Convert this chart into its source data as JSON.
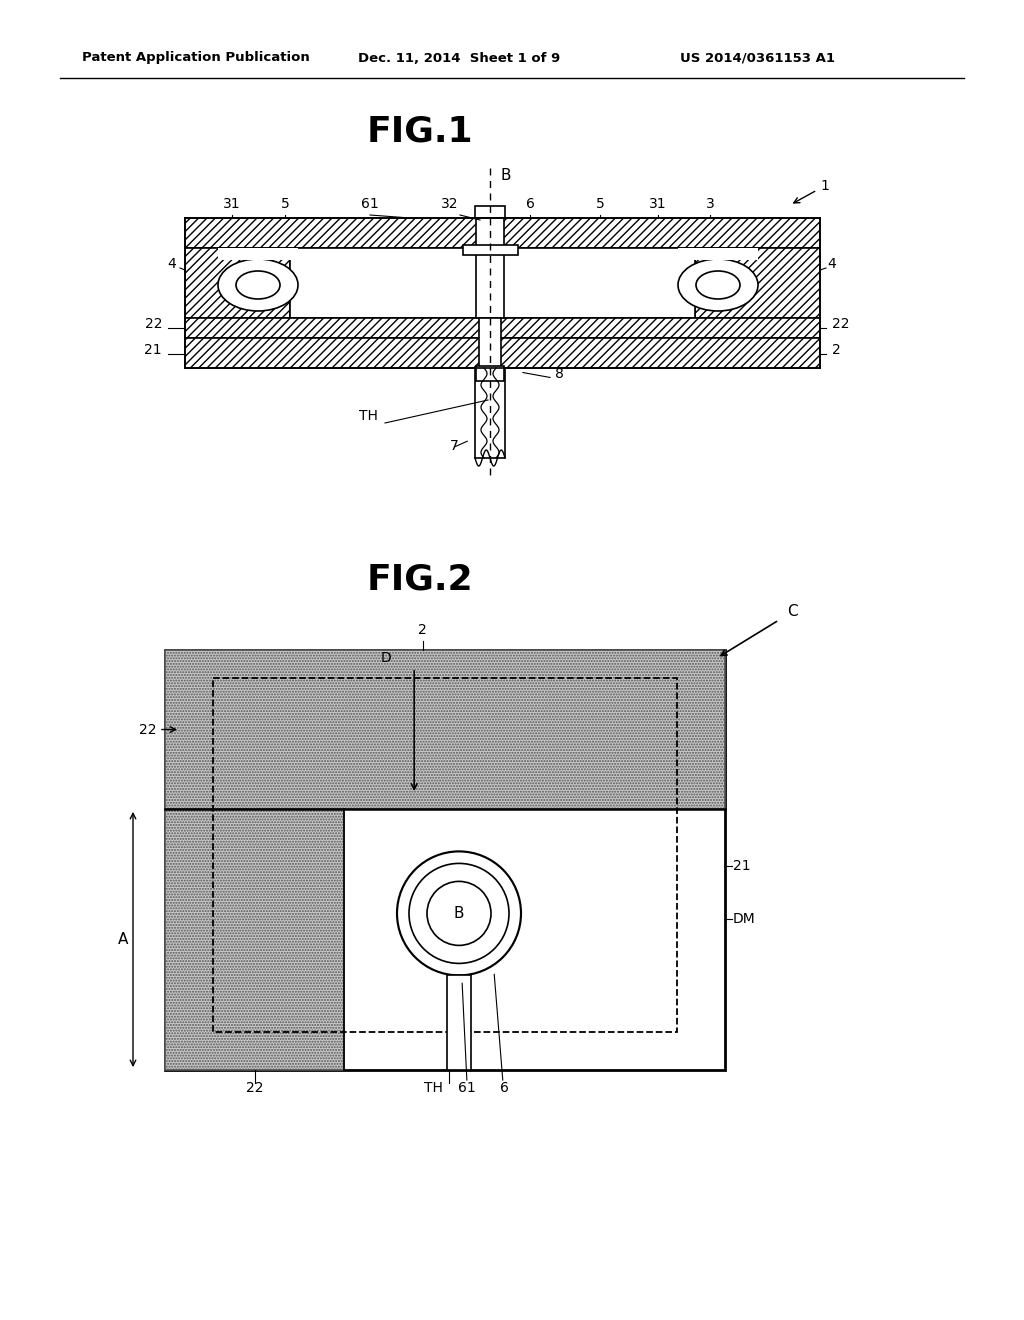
{
  "bg_color": "#ffffff",
  "header_text": "Patent Application Publication",
  "header_date": "Dec. 11, 2014  Sheet 1 of 9",
  "header_patent": "US 2014/0361153 A1",
  "fig1_title": "FIG.1",
  "fig2_title": "FIG.2",
  "line_color": "#000000"
}
